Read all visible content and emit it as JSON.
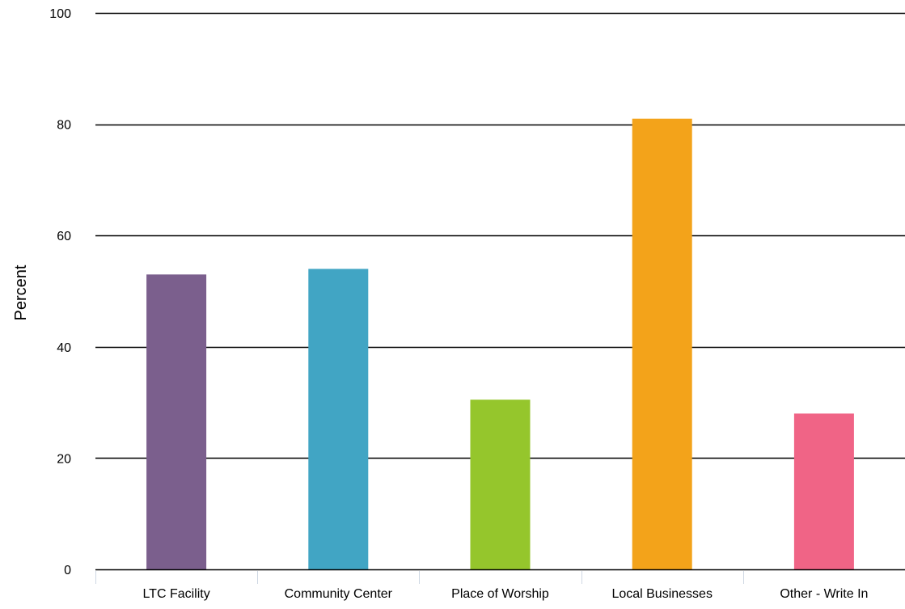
{
  "chart_data": {
    "type": "bar",
    "title": "",
    "xlabel": "",
    "ylabel": "Percent",
    "ylim": [
      0,
      100
    ],
    "yticks": [
      0,
      20,
      40,
      60,
      80,
      100
    ],
    "grid": true,
    "legend": "none",
    "categories": [
      "LTC Facility",
      "Community Center",
      "Place of Worship",
      "Local Businesses",
      "Other - Write In"
    ],
    "values": [
      53,
      54,
      30.5,
      81,
      28
    ],
    "colors": [
      "#7B5F8D",
      "#41A5C4",
      "#95C62C",
      "#F3A31A",
      "#F06486"
    ]
  }
}
